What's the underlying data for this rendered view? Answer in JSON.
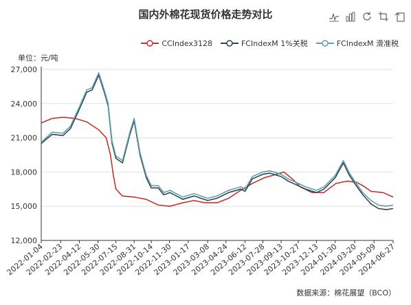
{
  "title": "国内外棉花现货价格走势对比",
  "unit_label": "单位：元/吨",
  "source": "数据来源：棉花展望（BCO）",
  "toolbar": {
    "icons": [
      "line-chart-icon",
      "bar-chart-icon",
      "restore-icon",
      "zoom-icon",
      "back-icon"
    ]
  },
  "colors": {
    "s1": "#c23531",
    "s2": "#2f4554",
    "s3": "#61a0a8"
  },
  "chart_data": {
    "type": "line",
    "title": "国内外棉花现货价格走势对比",
    "ylabel": "单位：元/吨",
    "ylim": [
      12000,
      27000
    ],
    "yticks": [
      "12,000",
      "15,000",
      "18,000",
      "21,000",
      "24,000",
      "27,000"
    ],
    "x_tick_labels": [
      "2022-01-04",
      "2022-02-23",
      "2022-04-12",
      "2022-05-30",
      "2022-07-15",
      "2022-08-31",
      "2022-10-14",
      "2022-11-30",
      "2023-01-17",
      "2023-03-08",
      "2023-04-24",
      "2023-06-12",
      "2023-07-28",
      "2023-09-13",
      "2023-10-27",
      "2023-12-13",
      "2024-01-30",
      "2024-03-20",
      "2024-05-09",
      "2024-06-27"
    ],
    "legend_position": "top-right",
    "grid": true,
    "series": [
      {
        "name": "CCIndex3128",
        "points": [
          [
            "2022-01-04",
            22300
          ],
          [
            "2022-02-01",
            22700
          ],
          [
            "2022-03-01",
            22800
          ],
          [
            "2022-04-01",
            22700
          ],
          [
            "2022-05-01",
            22400
          ],
          [
            "2022-06-01",
            21700
          ],
          [
            "2022-06-20",
            21000
          ],
          [
            "2022-07-01",
            19500
          ],
          [
            "2022-07-08",
            17800
          ],
          [
            "2022-07-15",
            16500
          ],
          [
            "2022-08-01",
            15900
          ],
          [
            "2022-09-01",
            15800
          ],
          [
            "2022-10-01",
            15600
          ],
          [
            "2022-11-01",
            15100
          ],
          [
            "2022-12-01",
            15000
          ],
          [
            "2023-01-03",
            15300
          ],
          [
            "2023-02-01",
            15500
          ],
          [
            "2023-03-01",
            15300
          ],
          [
            "2023-04-01",
            15300
          ],
          [
            "2023-05-01",
            15700
          ],
          [
            "2023-06-01",
            16400
          ],
          [
            "2023-07-01",
            17000
          ],
          [
            "2023-08-01",
            17500
          ],
          [
            "2023-09-01",
            17800
          ],
          [
            "2023-09-20",
            18000
          ],
          [
            "2023-10-15",
            17300
          ],
          [
            "2023-11-01",
            16700
          ],
          [
            "2023-12-01",
            16200
          ],
          [
            "2024-01-01",
            16200
          ],
          [
            "2024-02-01",
            17000
          ],
          [
            "2024-03-01",
            17200
          ],
          [
            "2024-03-25",
            17100
          ],
          [
            "2024-04-15",
            16700
          ],
          [
            "2024-05-01",
            16300
          ],
          [
            "2024-06-01",
            16200
          ],
          [
            "2024-06-27",
            15800
          ]
        ]
      },
      {
        "name": "FCIndexM 1%关税",
        "points": [
          [
            "2022-01-04",
            20500
          ],
          [
            "2022-02-01",
            21300
          ],
          [
            "2022-03-01",
            21200
          ],
          [
            "2022-03-20",
            21800
          ],
          [
            "2022-04-12",
            23500
          ],
          [
            "2022-05-01",
            25000
          ],
          [
            "2022-05-15",
            25200
          ],
          [
            "2022-06-01",
            26500
          ],
          [
            "2022-06-15",
            25000
          ],
          [
            "2022-06-25",
            23800
          ],
          [
            "2022-07-05",
            20500
          ],
          [
            "2022-07-15",
            19200
          ],
          [
            "2022-08-01",
            18800
          ],
          [
            "2022-08-20",
            21300
          ],
          [
            "2022-08-31",
            22500
          ],
          [
            "2022-09-15",
            19500
          ],
          [
            "2022-10-01",
            17500
          ],
          [
            "2022-10-14",
            16600
          ],
          [
            "2022-11-01",
            16600
          ],
          [
            "2022-11-15",
            16000
          ],
          [
            "2022-12-01",
            16200
          ],
          [
            "2023-01-03",
            15600
          ],
          [
            "2023-02-01",
            15900
          ],
          [
            "2023-03-08",
            15500
          ],
          [
            "2023-04-01",
            15700
          ],
          [
            "2023-05-01",
            16200
          ],
          [
            "2023-06-01",
            16500
          ],
          [
            "2023-06-12",
            16300
          ],
          [
            "2023-07-01",
            17400
          ],
          [
            "2023-07-28",
            17800
          ],
          [
            "2023-08-15",
            17900
          ],
          [
            "2023-09-13",
            17600
          ],
          [
            "2023-10-01",
            17200
          ],
          [
            "2023-10-27",
            16800
          ],
          [
            "2023-11-15",
            16500
          ],
          [
            "2023-12-13",
            16200
          ],
          [
            "2024-01-01",
            16500
          ],
          [
            "2024-01-30",
            17500
          ],
          [
            "2024-02-20",
            18800
          ],
          [
            "2024-03-05",
            17800
          ],
          [
            "2024-03-20",
            17000
          ],
          [
            "2024-04-10",
            16000
          ],
          [
            "2024-05-01",
            15200
          ],
          [
            "2024-05-20",
            14800
          ],
          [
            "2024-06-10",
            14700
          ],
          [
            "2024-06-27",
            14800
          ]
        ]
      },
      {
        "name": "FCIndexM 滑准税",
        "points": [
          [
            "2022-01-04",
            20600
          ],
          [
            "2022-02-01",
            21500
          ],
          [
            "2022-03-01",
            21400
          ],
          [
            "2022-03-20",
            22000
          ],
          [
            "2022-04-12",
            23700
          ],
          [
            "2022-05-01",
            25200
          ],
          [
            "2022-05-15",
            25400
          ],
          [
            "2022-06-01",
            26700
          ],
          [
            "2022-06-15",
            25200
          ],
          [
            "2022-06-25",
            24000
          ],
          [
            "2022-07-05",
            20700
          ],
          [
            "2022-07-15",
            19400
          ],
          [
            "2022-08-01",
            19000
          ],
          [
            "2022-08-20",
            21500
          ],
          [
            "2022-08-31",
            22700
          ],
          [
            "2022-09-15",
            19700
          ],
          [
            "2022-10-01",
            17700
          ],
          [
            "2022-10-14",
            16800
          ],
          [
            "2022-11-01",
            16800
          ],
          [
            "2022-11-15",
            16200
          ],
          [
            "2022-12-01",
            16400
          ],
          [
            "2023-01-03",
            15800
          ],
          [
            "2023-02-01",
            16100
          ],
          [
            "2023-03-08",
            15700
          ],
          [
            "2023-04-01",
            15900
          ],
          [
            "2023-05-01",
            16400
          ],
          [
            "2023-06-01",
            16700
          ],
          [
            "2023-06-12",
            16500
          ],
          [
            "2023-07-01",
            17600
          ],
          [
            "2023-07-28",
            18000
          ],
          [
            "2023-08-15",
            18100
          ],
          [
            "2023-09-13",
            17800
          ],
          [
            "2023-10-01",
            17400
          ],
          [
            "2023-10-27",
            17000
          ],
          [
            "2023-11-15",
            16700
          ],
          [
            "2023-12-13",
            16400
          ],
          [
            "2024-01-01",
            16700
          ],
          [
            "2024-01-30",
            17700
          ],
          [
            "2024-02-20",
            19000
          ],
          [
            "2024-03-05",
            18000
          ],
          [
            "2024-03-20",
            17200
          ],
          [
            "2024-04-10",
            16200
          ],
          [
            "2024-05-01",
            15500
          ],
          [
            "2024-05-20",
            15100
          ],
          [
            "2024-06-10",
            15000
          ],
          [
            "2024-06-27",
            15100
          ]
        ]
      }
    ]
  }
}
